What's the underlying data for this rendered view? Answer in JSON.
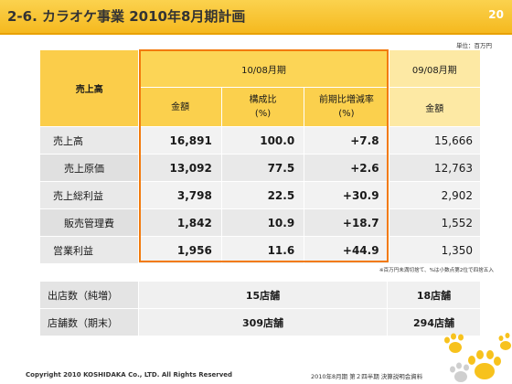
{
  "header": {
    "title": "2-6. カラオケ事業 2010年8月期計画",
    "page_number": "20"
  },
  "unit_note": "単位：百万円",
  "table": {
    "row_header_label": "売上高",
    "plan_period": "10/08月期",
    "prev_period": "09/08月期",
    "col_amount": "金額",
    "col_ratio_line1": "構成比",
    "col_ratio_line2": "(%)",
    "col_change_line1": "前期比増減率",
    "col_change_line2": "(%)",
    "col_prev_amount": "金額",
    "rows": [
      {
        "label": "売上高",
        "amount": "16,891",
        "ratio": "100.0",
        "change": "+7.8",
        "prev": "15,666"
      },
      {
        "label": "売上原価",
        "amount": "13,092",
        "ratio": "77.5",
        "change": "+2.6",
        "prev": "12,763"
      },
      {
        "label": "売上総利益",
        "amount": "3,798",
        "ratio": "22.5",
        "change": "+30.9",
        "prev": "2,902"
      },
      {
        "label": "販売管理費",
        "amount": "1,842",
        "ratio": "10.9",
        "change": "+18.7",
        "prev": "1,552"
      },
      {
        "label": "営業利益",
        "amount": "1,956",
        "ratio": "11.6",
        "change": "+44.9",
        "prev": "1,350"
      }
    ]
  },
  "footnote": "※百万円未満切捨て、%は小数点第2位で四捨五入",
  "stores": [
    {
      "label": "出店数（純増）",
      "plan": "15店舗",
      "prev": "18店舗"
    },
    {
      "label": "店舗数（期末）",
      "plan": "309店舗",
      "prev": "294店舗"
    }
  ],
  "footer": {
    "copyright": "Copyright 2010 KOSHIDAKA Co., LTD. All Rights Reserved",
    "doc_title": "2010年8月期 第２四半期 決算説明会資料"
  },
  "colors": {
    "accent": "#f5b91f",
    "box": "#f27a0c"
  }
}
